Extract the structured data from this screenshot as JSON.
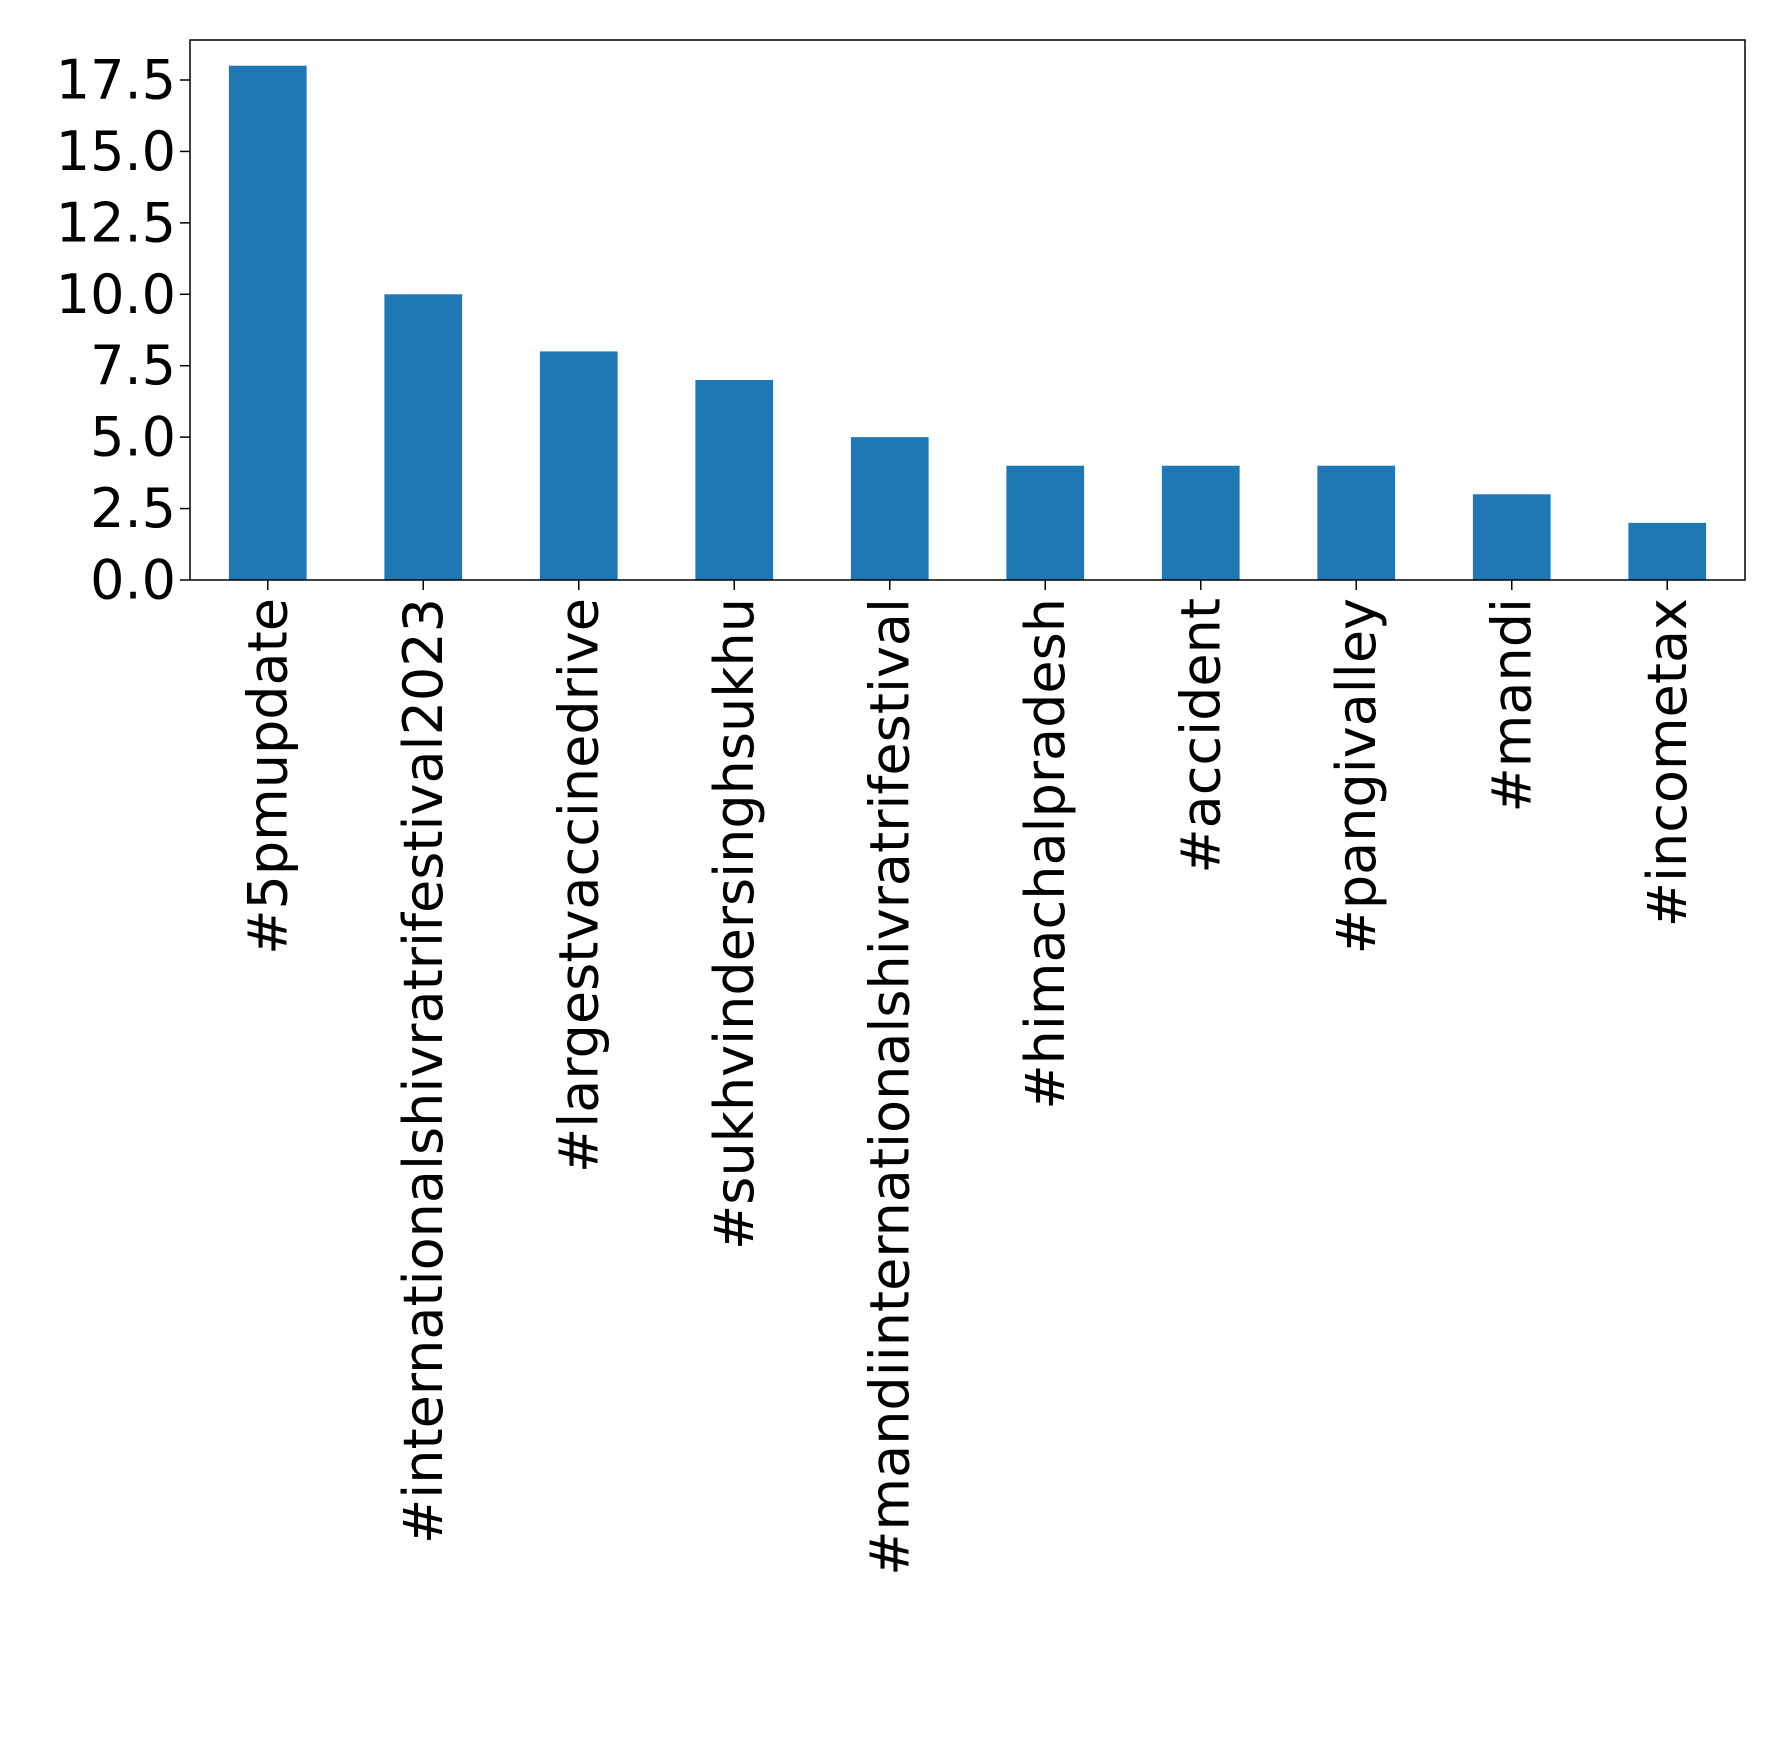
{
  "chart_data": {
    "type": "bar",
    "title": "",
    "xlabel": "",
    "ylabel": "",
    "categories": [
      "#5pmupdate",
      "#internationalshivratrifestival2023",
      "#largestvaccinedrive",
      "#sukhvindersinghsukhu",
      "#mandiinternationalshivratrifestival",
      "#himachalpradesh",
      "#accident",
      "#pangivalley",
      "#mandi",
      "#incometax"
    ],
    "values": [
      18,
      10,
      8,
      7,
      5,
      4,
      4,
      4,
      3,
      2
    ],
    "ylim": [
      0,
      18.9
    ],
    "yticks": [
      0,
      2.5,
      5,
      7.5,
      10,
      12.5,
      15,
      17.5
    ],
    "ytick_labels": [
      "0.0",
      "2.5",
      "5.0",
      "7.5",
      "10.0",
      "12.5",
      "15.0",
      "17.5"
    ],
    "grid": false,
    "bar_color": "#1f77b4"
  }
}
